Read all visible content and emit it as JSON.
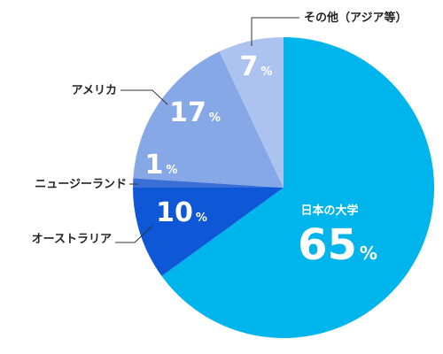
{
  "chart_data": {
    "type": "pie",
    "slices": [
      {
        "name": "日本の大学",
        "value": 65,
        "color": "#00b4ec"
      },
      {
        "name": "オーストラリア",
        "value": 10,
        "color": "#0e57d6"
      },
      {
        "name": "ニュージーランド",
        "value": 1,
        "color": "#3b6fd8"
      },
      {
        "name": "アメリカ",
        "value": 17,
        "color": "#86a8e7"
      },
      {
        "name": "その他（アジア等）",
        "value": 7,
        "color": "#adc3ef"
      }
    ],
    "unit": "%",
    "start": "top",
    "direction": "clockwise"
  }
}
